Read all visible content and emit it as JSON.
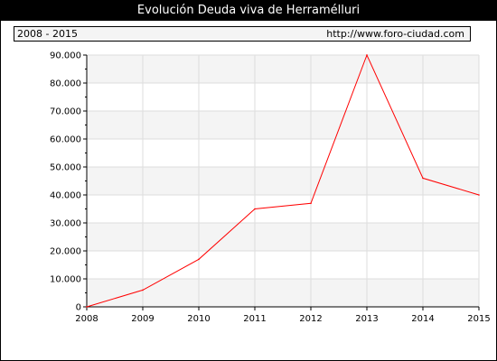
{
  "header": {
    "title": "Evolución Deuda viva de Herramélluri"
  },
  "info_bar": {
    "period": "2008 - 2015",
    "source": "http://www.foro-ciudad.com"
  },
  "chart_data": {
    "type": "line",
    "title": "Evolución Deuda viva de Herramélluri",
    "xlabel": "",
    "ylabel": "",
    "x": [
      2008,
      2009,
      2010,
      2011,
      2012,
      2013,
      2014,
      2015
    ],
    "x_tick_labels": [
      "2008",
      "2009",
      "2010",
      "2011",
      "2012",
      "2013",
      "2014",
      "2015"
    ],
    "y_tick_values": [
      0,
      10000,
      20000,
      30000,
      40000,
      50000,
      60000,
      70000,
      80000,
      90000
    ],
    "y_tick_labels": [
      "0",
      "10.000",
      "20.000",
      "30.000",
      "40.000",
      "50.000",
      "60.000",
      "70.000",
      "80.000",
      "90.000"
    ],
    "ylim": [
      0,
      90000
    ],
    "grid": true,
    "series": [
      {
        "values": [
          0,
          6000,
          17000,
          35000,
          37000,
          90000,
          46000,
          40000
        ],
        "color": "#ff0000"
      }
    ]
  }
}
